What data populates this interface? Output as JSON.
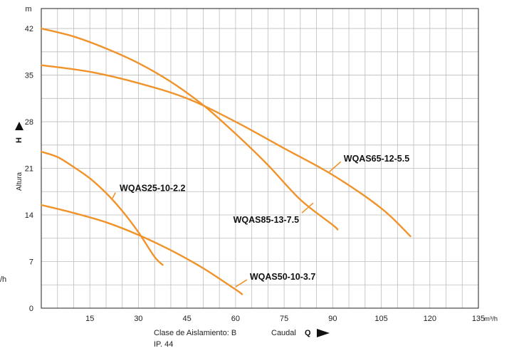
{
  "chart_data": {
    "type": "line",
    "xlabel": "Caudal",
    "xsymbol": "Q",
    "xunit": "m³/h",
    "ylabel": "Altura",
    "ysymbol": "H",
    "yunit": "m",
    "xlim": [
      0,
      135
    ],
    "ylim": [
      0,
      45
    ],
    "xticks": [
      15,
      30,
      45,
      60,
      75,
      90,
      105,
      120,
      135
    ],
    "yticks": [
      0,
      7,
      14,
      21,
      28,
      35,
      42
    ],
    "grid": true,
    "line_color": "#f0932b",
    "insulation_class": "Clase de Aislamiento: B",
    "ip_rating": "IP. 44",
    "stray_text": "/h",
    "series": [
      {
        "name": "WQAS25-10-2.2",
        "points": [
          [
            0,
            23.5
          ],
          [
            5,
            22.7
          ],
          [
            10,
            21.2
          ],
          [
            15,
            19.5
          ],
          [
            20,
            17.3
          ],
          [
            25,
            14.6
          ],
          [
            30,
            11.4
          ],
          [
            35,
            7.7
          ],
          [
            37.5,
            6.5
          ]
        ]
      },
      {
        "name": "WQAS50-10-3.7",
        "points": [
          [
            0,
            15.5
          ],
          [
            10,
            14.3
          ],
          [
            20,
            12.9
          ],
          [
            30,
            11.0
          ],
          [
            40,
            8.7
          ],
          [
            50,
            6.0
          ],
          [
            60,
            2.8
          ],
          [
            62,
            2.1
          ]
        ]
      },
      {
        "name": "WQAS85-13-7.5",
        "points": [
          [
            0,
            42.0
          ],
          [
            10,
            40.8
          ],
          [
            20,
            39.0
          ],
          [
            30,
            36.8
          ],
          [
            40,
            34.0
          ],
          [
            50,
            30.5
          ],
          [
            60,
            26.2
          ],
          [
            70,
            21.5
          ],
          [
            80,
            16.3
          ],
          [
            90,
            12.5
          ],
          [
            91.5,
            11.8
          ]
        ]
      },
      {
        "name": "WQAS65-12-5.5",
        "points": [
          [
            0,
            36.5
          ],
          [
            15,
            35.5
          ],
          [
            30,
            33.8
          ],
          [
            45,
            31.5
          ],
          [
            60,
            28.0
          ],
          [
            75,
            24.0
          ],
          [
            90,
            20.0
          ],
          [
            105,
            15.0
          ],
          [
            114,
            10.8
          ]
        ]
      }
    ],
    "annotations": [
      {
        "series": "WQAS25-10-2.2",
        "text": "WQAS25-10-2.2",
        "anchor": [
          22,
          16.5
        ]
      },
      {
        "series": "WQAS50-10-3.7",
        "text": "WQAS50-10-3.7",
        "anchor": [
          60,
          3.2
        ]
      },
      {
        "series": "WQAS85-13-7.5",
        "text": "WQAS85-13-7.5",
        "anchor": [
          84,
          15.8
        ]
      },
      {
        "series": "WQAS65-12-5.5",
        "text": "WQAS65-12-5.5",
        "anchor": [
          89,
          20.5
        ]
      }
    ]
  }
}
